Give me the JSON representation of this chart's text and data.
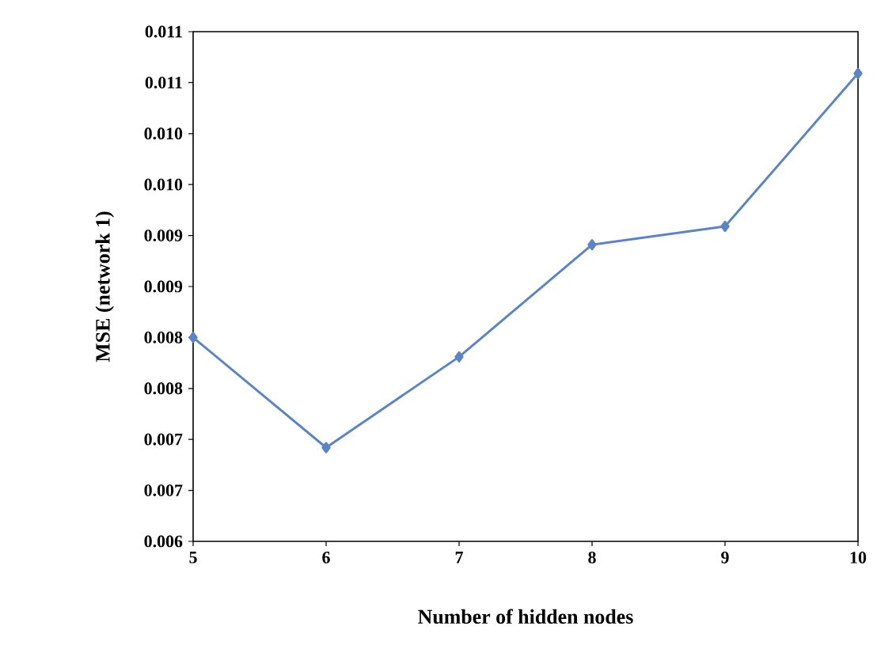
{
  "chart_data": {
    "type": "line",
    "xlabel": "Number of hidden nodes",
    "ylabel": "MSE (network 1)",
    "x": [
      5,
      6,
      7,
      8,
      9,
      10
    ],
    "series": [
      {
        "color": "#5b84c4",
        "values": [
          0.008,
          0.00692,
          0.00781,
          0.00891,
          0.00909,
          0.01059
        ]
      }
    ],
    "xlim": [
      5,
      10
    ],
    "xticks": [
      5,
      6,
      7,
      8,
      9,
      10
    ],
    "ylim": [
      0.006,
      0.011
    ],
    "yticks": [
      {
        "value": 0.006,
        "label": "0.006"
      },
      {
        "value": 0.0065,
        "label": "0.007"
      },
      {
        "value": 0.007,
        "label": "0.007"
      },
      {
        "value": 0.0075,
        "label": "0.008"
      },
      {
        "value": 0.008,
        "label": "0.008"
      },
      {
        "value": 0.0085,
        "label": "0.009"
      },
      {
        "value": 0.009,
        "label": "0.009"
      },
      {
        "value": 0.0095,
        "label": "0.010"
      },
      {
        "value": 0.01,
        "label": "0.010"
      },
      {
        "value": 0.0105,
        "label": "0.011"
      },
      {
        "value": 0.011,
        "label": "0.011"
      }
    ],
    "marker": "diamond",
    "line_style": "solid",
    "grid": false
  }
}
